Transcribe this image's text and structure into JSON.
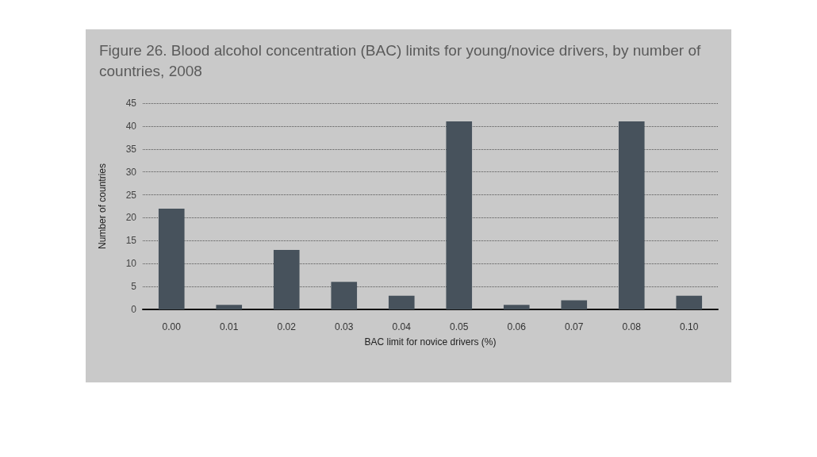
{
  "chart_data": {
    "type": "bar",
    "title": "Figure 26. Blood alcohol concentration (BAC) limits for young/novice drivers, by number of countries, 2008",
    "xlabel": "BAC limit for novice drivers (%)",
    "ylabel": "Number of countries",
    "categories": [
      "0.00",
      "0.01",
      "0.02",
      "0.03",
      "0.04",
      "0.05",
      "0.06",
      "0.07",
      "0.08",
      "0.10"
    ],
    "values": [
      22,
      1,
      13,
      6,
      3,
      41,
      1,
      2,
      41,
      3
    ],
    "color": "#47525c",
    "ylim": [
      0,
      45
    ],
    "yticks": [
      0,
      5,
      10,
      15,
      20,
      25,
      30,
      35,
      40,
      45
    ],
    "grid": "y"
  }
}
